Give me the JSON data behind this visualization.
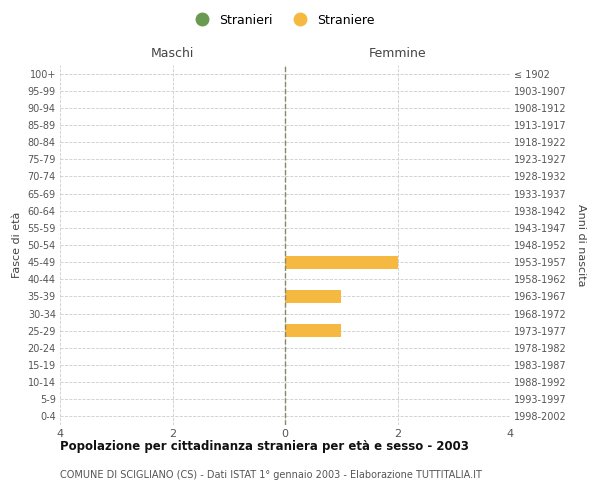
{
  "age_groups": [
    "0-4",
    "5-9",
    "10-14",
    "15-19",
    "20-24",
    "25-29",
    "30-34",
    "35-39",
    "40-44",
    "45-49",
    "50-54",
    "55-59",
    "60-64",
    "65-69",
    "70-74",
    "75-79",
    "80-84",
    "85-89",
    "90-94",
    "95-99",
    "100+"
  ],
  "birth_years": [
    "1998-2002",
    "1993-1997",
    "1988-1992",
    "1983-1987",
    "1978-1982",
    "1973-1977",
    "1968-1972",
    "1963-1967",
    "1958-1962",
    "1953-1957",
    "1948-1952",
    "1943-1947",
    "1938-1942",
    "1933-1937",
    "1928-1932",
    "1923-1927",
    "1918-1922",
    "1913-1917",
    "1908-1912",
    "1903-1907",
    "≤ 1902"
  ],
  "males": [
    0,
    0,
    0,
    0,
    0,
    0,
    0,
    0,
    0,
    0,
    0,
    0,
    0,
    0,
    0,
    0,
    0,
    0,
    0,
    0,
    0
  ],
  "females": [
    0,
    0,
    0,
    0,
    0,
    1,
    0,
    1,
    0,
    2,
    0,
    0,
    0,
    0,
    0,
    0,
    0,
    0,
    0,
    0,
    0
  ],
  "male_color": "#6a9a52",
  "female_color": "#f5b942",
  "xlim": 4,
  "xlabel_left": "Maschi",
  "xlabel_right": "Femmine",
  "ylabel_left": "Fasce di età",
  "ylabel_right": "Anni di nascita",
  "legend_male": "Stranieri",
  "legend_female": "Straniere",
  "title": "Popolazione per cittadinanza straniera per età e sesso - 2003",
  "subtitle": "COMUNE DI SCIGLIANO (CS) - Dati ISTAT 1° gennaio 2003 - Elaborazione TUTTITALIA.IT",
  "center_line_color": "#888866",
  "grid_color": "#cccccc",
  "bg_color": "#ffffff"
}
